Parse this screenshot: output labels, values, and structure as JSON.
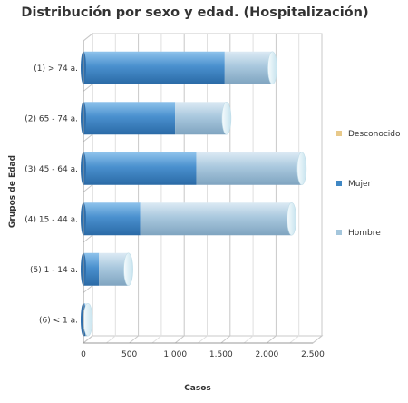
{
  "chart_data": {
    "type": "bar",
    "orientation": "horizontal",
    "stacked": true,
    "style": "3d-cylinder",
    "title": "Distribución por sexo y edad. (Hospitalización)",
    "xlabel": "Casos",
    "ylabel": "Grupos de Edad",
    "xlim": [
      0,
      2500
    ],
    "xticks": [
      0,
      500,
      1000,
      1500,
      2000,
      2500
    ],
    "xtick_labels": [
      "0",
      "500",
      "1.000",
      "1.500",
      "2.000",
      "2.500"
    ],
    "grid": true,
    "legend_position": "right",
    "categories": [
      "(1) > 74 a.",
      "(2) 65 - 74 a.",
      "(3) 45 - 64 a.",
      "(4) 15 - 44 a.",
      "(5) 1 - 14 a.",
      "(6) < 1 a."
    ],
    "series": [
      {
        "name": "Mujer",
        "color": "#3f87c4",
        "values": [
          1540,
          1000,
          1230,
          620,
          170,
          20
        ]
      },
      {
        "name": "Hombre",
        "color": "#a4c6dc",
        "values": [
          520,
          560,
          1150,
          1650,
          320,
          30
        ]
      },
      {
        "name": "Desconocido",
        "color": "#e8c98a",
        "values": [
          0,
          0,
          0,
          0,
          0,
          0
        ]
      }
    ],
    "legend_order": [
      "Desconocido",
      "Mujer",
      "Hombre"
    ]
  }
}
